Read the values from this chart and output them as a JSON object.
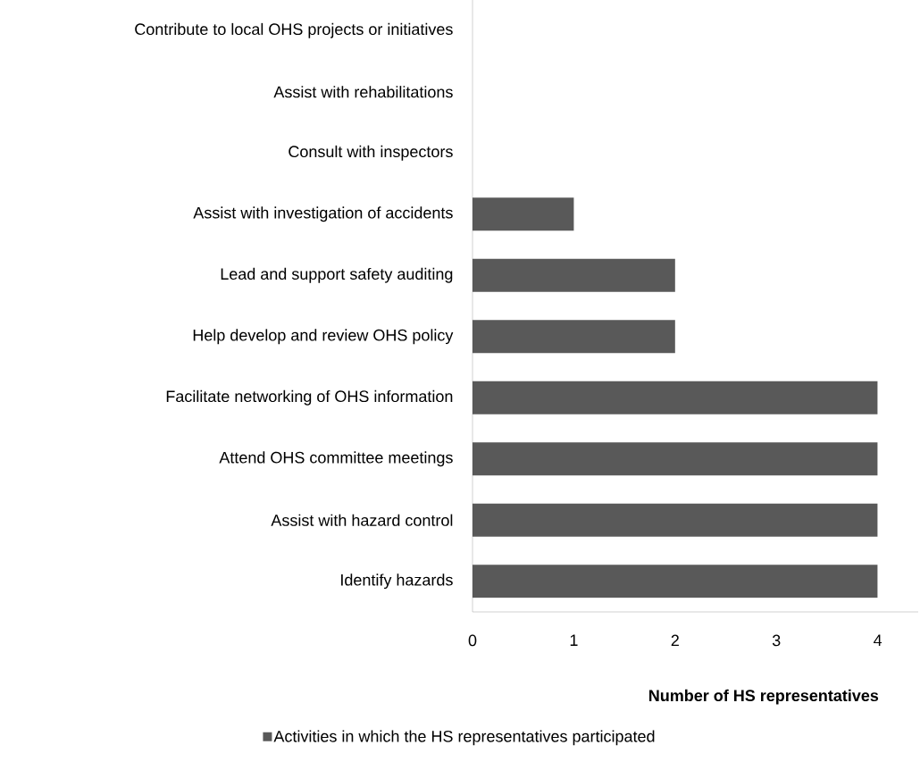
{
  "chart_data": {
    "type": "bar",
    "orientation": "horizontal",
    "xlabel": "Number of HS representatives",
    "categories": [
      "Contribute to local OHS projects or initiatives",
      "Assist with rehabilitations",
      "Consult with inspectors",
      "Assist with investigation of accidents",
      "Lead and support safety auditing",
      "Help develop and review OHS policy",
      "Facilitate networking of OHS information",
      "Attend OHS committee meetings",
      "Assist with hazard control",
      "Identify hazards"
    ],
    "series": [
      {
        "name": "Activities in which the HS representatives participated",
        "color": "#595959",
        "values": [
          0,
          0,
          0,
          1,
          2,
          2,
          4,
          4,
          4,
          4
        ]
      }
    ],
    "xlim": [
      0,
      4.4
    ],
    "xticks": [
      0,
      1,
      2,
      3,
      4
    ],
    "legend": "bottom"
  }
}
